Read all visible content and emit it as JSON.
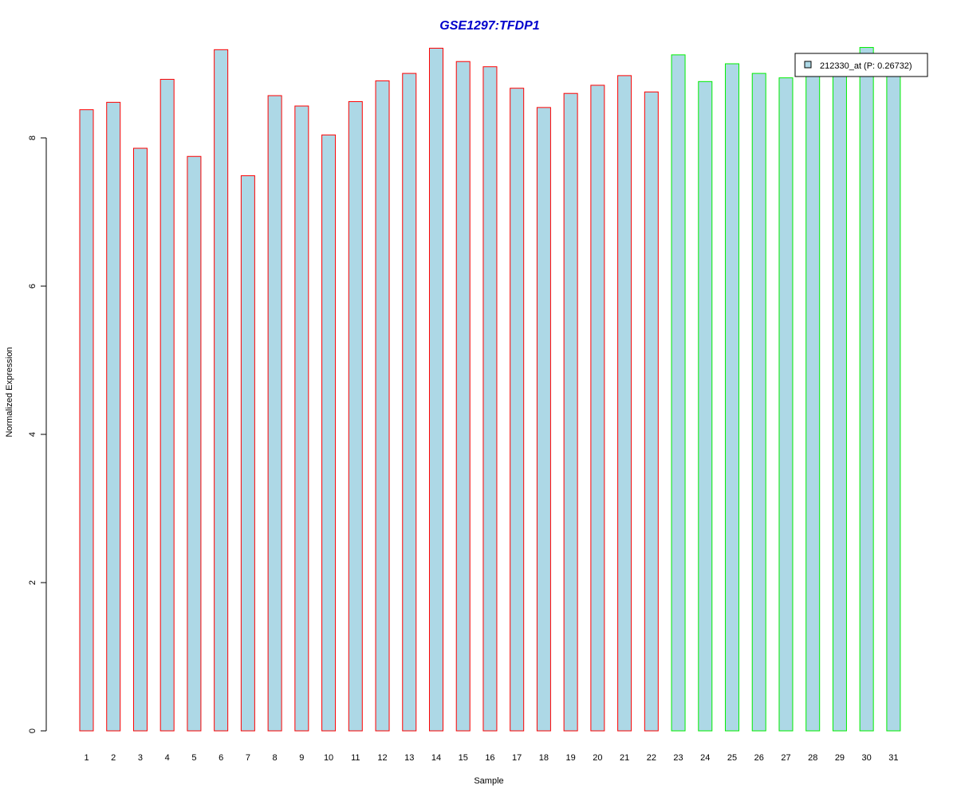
{
  "chart_data": {
    "type": "bar",
    "title": "GSE1297:TFDP1",
    "xlabel": "Sample",
    "ylabel": "Normalized Expression",
    "ylim": [
      0,
      9.25
    ],
    "yticks": [
      0,
      2,
      4,
      6,
      8
    ],
    "grid": false,
    "legend_position": "top-right",
    "categories": [
      "1",
      "2",
      "3",
      "4",
      "5",
      "6",
      "7",
      "8",
      "9",
      "10",
      "11",
      "12",
      "13",
      "14",
      "15",
      "16",
      "17",
      "18",
      "19",
      "20",
      "21",
      "22",
      "23",
      "24",
      "25",
      "26",
      "27",
      "28",
      "29",
      "30",
      "31"
    ],
    "series": [
      {
        "name": "212330_at (P: 0.26732)",
        "values": [
          8.38,
          8.48,
          7.86,
          8.79,
          7.75,
          9.19,
          7.49,
          8.57,
          8.43,
          8.04,
          8.49,
          8.77,
          8.87,
          9.21,
          9.03,
          8.96,
          8.67,
          8.41,
          8.6,
          8.71,
          8.84,
          8.62,
          9.12,
          8.76,
          9.0,
          8.87,
          8.81,
          8.95,
          8.96,
          9.22,
          8.96
        ],
        "groups": [
          1,
          1,
          1,
          1,
          1,
          1,
          1,
          1,
          1,
          1,
          1,
          1,
          1,
          1,
          1,
          1,
          1,
          1,
          1,
          1,
          1,
          1,
          2,
          2,
          2,
          2,
          2,
          2,
          2,
          2,
          2
        ]
      }
    ],
    "colors": {
      "title": "#0000cc",
      "bar_fill": "#add8e6",
      "group1_border": "#ff0000",
      "group2_border": "#00ee00",
      "axis": "#000000"
    }
  }
}
